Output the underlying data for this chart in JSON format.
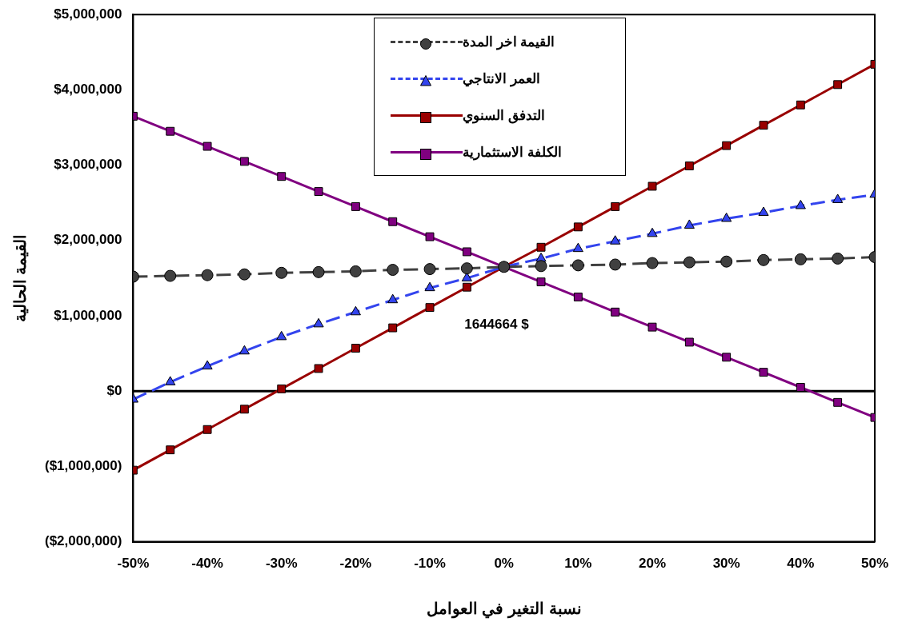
{
  "chart_data": {
    "type": "line",
    "xlabel": "نسبة التغير في العوامل",
    "ylabel": "القيمة الحالية",
    "x": [
      -50,
      -45,
      -40,
      -35,
      -30,
      -25,
      -20,
      -15,
      -10,
      -5,
      0,
      5,
      10,
      15,
      20,
      25,
      30,
      35,
      40,
      45,
      50
    ],
    "xlim": [
      -50,
      50
    ],
    "xticks": [
      {
        "value": -50,
        "label": "-50%"
      },
      {
        "value": -40,
        "label": "-40%"
      },
      {
        "value": -30,
        "label": "-30%"
      },
      {
        "value": -20,
        "label": "-20%"
      },
      {
        "value": -10,
        "label": "-10%"
      },
      {
        "value": 0,
        "label": "0%"
      },
      {
        "value": 10,
        "label": "10%"
      },
      {
        "value": 20,
        "label": "20%"
      },
      {
        "value": 30,
        "label": "30%"
      },
      {
        "value": 40,
        "label": "40%"
      },
      {
        "value": 50,
        "label": "50%"
      }
    ],
    "ylim": [
      -2000000,
      5000000
    ],
    "yticks": [
      {
        "value": -2000000,
        "label": "($2,000,000)"
      },
      {
        "value": -1000000,
        "label": "($1,000,000)"
      },
      {
        "value": 0,
        "label": "$0"
      },
      {
        "value": 1000000,
        "label": "$1,000,000"
      },
      {
        "value": 2000000,
        "label": "$2,000,000"
      },
      {
        "value": 3000000,
        "label": "$3,000,000"
      },
      {
        "value": 4000000,
        "label": "$4,000,000"
      },
      {
        "value": 5000000,
        "label": "$5,000,000"
      }
    ],
    "grid": false,
    "legend": "top",
    "series": [
      {
        "name": "القيمة اخر المدة",
        "color": "#404040",
        "marker": "circle",
        "line_style": "dashed",
        "values": [
          1520000,
          1530000,
          1540000,
          1550000,
          1570000,
          1580000,
          1590000,
          1610000,
          1620000,
          1630000,
          1650000,
          1660000,
          1670000,
          1680000,
          1700000,
          1710000,
          1720000,
          1740000,
          1750000,
          1760000,
          1780000
        ]
      },
      {
        "name": "العمر الانتاجي",
        "color": "#3344ee",
        "marker": "triangle",
        "line_style": "dashed",
        "values": [
          -110000,
          120000,
          330000,
          530000,
          720000,
          890000,
          1050000,
          1210000,
          1370000,
          1500000,
          1650000,
          1760000,
          1890000,
          1990000,
          2090000,
          2200000,
          2290000,
          2370000,
          2460000,
          2540000,
          2610000
        ]
      },
      {
        "name": "التدفق السنوي",
        "color": "#990000",
        "marker": "square",
        "line_style": "solid",
        "values": [
          -1050000,
          -780000,
          -510000,
          -240000,
          30000,
          300000,
          570000,
          840000,
          1110000,
          1380000,
          1650000,
          1910000,
          2180000,
          2450000,
          2720000,
          2990000,
          3260000,
          3530000,
          3800000,
          4070000,
          4340000
        ]
      },
      {
        "name": "الكلفة الاستثمارية",
        "color": "#800080",
        "marker": "square",
        "line_style": "solid",
        "values": [
          3650000,
          3450000,
          3250000,
          3050000,
          2850000,
          2650000,
          2450000,
          2250000,
          2050000,
          1850000,
          1650000,
          1450000,
          1250000,
          1050000,
          850000,
          650000,
          450000,
          250000,
          50000,
          -150000,
          -350000
        ]
      }
    ],
    "ref_lines": [
      {
        "axis": "y",
        "value": 0,
        "color": "#000000",
        "line_style": "solid"
      }
    ],
    "annotations": [
      "1644664 $"
    ]
  }
}
